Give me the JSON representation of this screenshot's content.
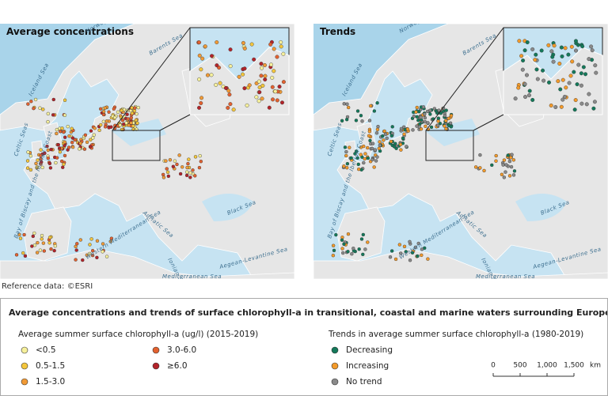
{
  "maps": [
    {
      "title": "Average concentrations",
      "sea_labels": [
        "Barents Sea",
        "Norwegian Sea",
        "Iceland Sea",
        "Celtic Seas",
        "Bay of Biscay and the Iberian Coast",
        "Black Sea",
        "Adriatic Sea",
        "Western Mediterranean Sea",
        "Ionian Sea and the Central Mediterranean Sea",
        "Aegean-Levantine Sea",
        "Mediterranean Sea"
      ]
    },
    {
      "title": "Trends",
      "sea_labels": [
        "Barents Sea",
        "Norwegian Sea",
        "Iceland Sea",
        "Celtic Seas",
        "Bay of Biscay and the Iberian Coast",
        "Black Sea",
        "Adriatic Sea",
        "Western Mediterranean Sea",
        "Ionian Sea and the Central Mediterranean Sea",
        "Aegean-Levantine Sea",
        "Mediterranean Sea"
      ]
    }
  ],
  "reference": "Reference data: ©ESRI",
  "legend": {
    "title": "Average concentrations and trends of surface chlorophyll-a in transitional, coastal and marine waters surrounding Europe",
    "concentration": {
      "title": "Average summer surface chlorophyll-a (ug/l) (2015-2019)",
      "items": [
        {
          "label": "<0.5",
          "color": "#f6f09c"
        },
        {
          "label": "0.5-1.5",
          "color": "#f4c63c"
        },
        {
          "label": "1.5-3.0",
          "color": "#f19a36"
        },
        {
          "label": "3.0-6.0",
          "color": "#e3612f"
        },
        {
          "label": "≥6.0",
          "color": "#b3242a"
        }
      ]
    },
    "trends": {
      "title": "Trends in average summer surface chlorophyll-a (1980-2019)",
      "items": [
        {
          "label": "Decreasing",
          "color": "#14795a"
        },
        {
          "label": "Increasing",
          "color": "#f39a2a"
        },
        {
          "label": "No trend",
          "color": "#8a8a8a"
        }
      ]
    }
  },
  "scale": {
    "ticks": [
      "0",
      "500",
      "1,000",
      "1,500"
    ],
    "unit": "km"
  }
}
